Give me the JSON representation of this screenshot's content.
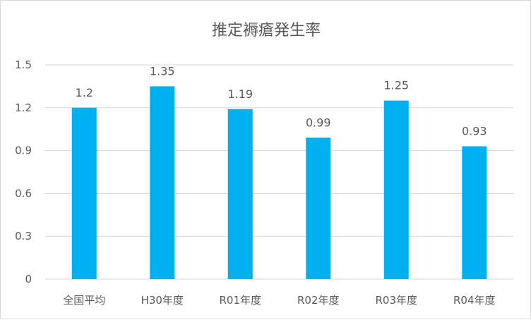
{
  "chart_data": {
    "type": "bar",
    "title": "推定褥瘡発生率",
    "categories": [
      "全国平均",
      "H30年度",
      "R01年度",
      "R02年度",
      "R03年度",
      "R04年度"
    ],
    "values": [
      1.2,
      1.35,
      1.19,
      0.99,
      1.25,
      0.93
    ],
    "value_labels": [
      "1.2",
      "1.35",
      "1.19",
      "0.99",
      "1.25",
      "0.93"
    ],
    "ylim": [
      0,
      1.5
    ],
    "yticks": [
      0,
      0.3,
      0.6,
      0.9,
      1.2,
      1.5
    ],
    "ytick_labels": [
      "0",
      "0.3",
      "0.6",
      "0.9",
      "1.2",
      "1.5"
    ],
    "xlabel": "",
    "ylabel": "",
    "grid": true,
    "legend": "none",
    "colors": {
      "bar": "#00b0f0",
      "grid": "#d9d9d9",
      "text": "#595959"
    }
  }
}
